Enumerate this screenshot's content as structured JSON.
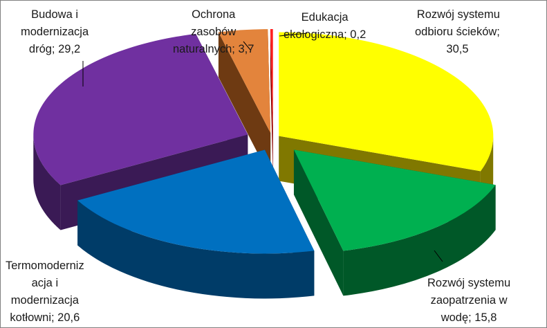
{
  "chart_data": {
    "type": "pie",
    "title": "",
    "style": "3d-exploded",
    "slices": [
      {
        "name": "Rozwój systemu odbioru ścieków",
        "value": 30.5,
        "color": "#ffff00",
        "side_color": "#807800",
        "label_lines": [
          "Rozwój systemu",
          "odbioru ścieków;",
          "30,5"
        ]
      },
      {
        "name": "Rozwój systemu zaopatrzenia w wodę",
        "value": 15.8,
        "color": "#00b050",
        "side_color": "#005828",
        "label_lines": [
          "Rozwój systemu",
          "zaopatrzenia w",
          "wodę; 15,8"
        ]
      },
      {
        "name": "Termomodernizacja i modernizacja kotłowni",
        "value": 20.6,
        "color": "#0070c0",
        "side_color": "#003c68",
        "label_lines": [
          "Termomoderniz",
          "acja i",
          "modernizacja",
          "kotłowni; 20,6"
        ]
      },
      {
        "name": "Budowa i modernizacja dróg",
        "value": 29.2,
        "color": "#7030a0",
        "side_color": "#3a1a55",
        "label_lines": [
          "Budowa i",
          "modernizacja",
          "dróg; 29,2"
        ]
      },
      {
        "name": "Ochrona zasobów naturalnych",
        "value": 3.7,
        "color": "#e3843c",
        "side_color": "#6e3a12",
        "label_lines": [
          "Ochrona",
          "zasobów",
          "naturalnych; 3,7"
        ]
      },
      {
        "name": "Edukacja ekologiczna",
        "value": 0.2,
        "color": "#ff2020",
        "side_color": "#8b0000",
        "label_lines": [
          "Edukacja",
          "ekologiczna; 0,2"
        ]
      }
    ]
  }
}
